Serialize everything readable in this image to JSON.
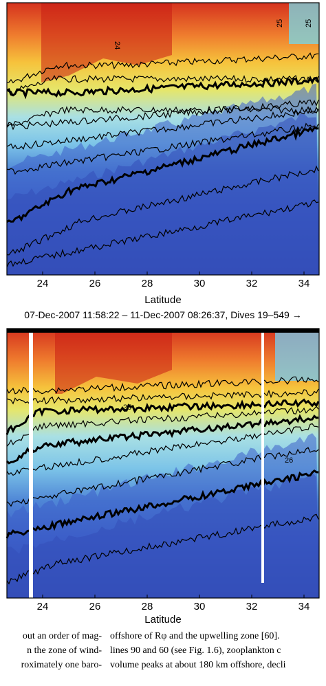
{
  "figure": {
    "top_panel": {
      "xlabel": "Latitude",
      "x_ticks": [
        "24",
        "26",
        "28",
        "30",
        "32",
        "34"
      ],
      "contour_labels": [
        "24",
        "25",
        "25"
      ],
      "colors": [
        "#2a3aa6",
        "#3c5ec8",
        "#4f86d6",
        "#7cc4e8",
        "#a9e0e4",
        "#e6e66a",
        "#f6c33c",
        "#ef7d2e",
        "#d5321e",
        "#b01a14"
      ]
    },
    "caption": "07-Dec-2007 11:58:22 – 11-Dec-2007 08:26:37, Dives 19–549 →",
    "bottom_panel": {
      "xlabel": "Latitude",
      "x_ticks": [
        "24",
        "26",
        "28",
        "30",
        "32",
        "34"
      ],
      "contour_labels": [
        "25",
        "26"
      ]
    }
  },
  "body_text": {
    "left_column": [
      "out an order of mag-",
      "n the zone of wind-",
      "roximately one baro-"
    ],
    "right_column": [
      "offshore of Rφ and the upwelling zone [60].",
      "lines 90 and 60 (see Fig. 1.6), zooplankton c",
      "volume peaks at about 180 km offshore, decli"
    ]
  }
}
